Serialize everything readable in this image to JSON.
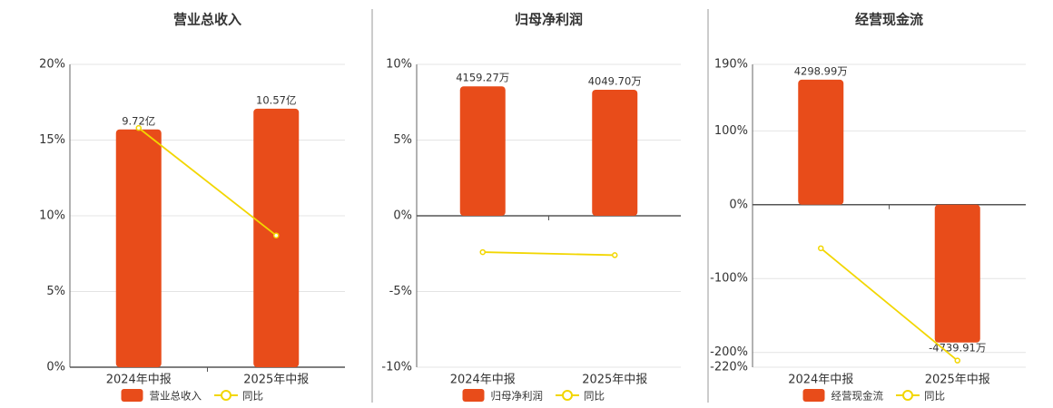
{
  "chart_data": [
    {
      "type": "bar",
      "title": "营业总收入",
      "categories": [
        "2024年中报",
        "2025年中报"
      ],
      "series": [
        {
          "name": "营业总收入",
          "color": "#e84c1a",
          "axis": "y2",
          "values": [
            9.72,
            10.57
          ],
          "value_labels": [
            "9.72亿",
            "10.57亿"
          ]
        },
        {
          "name": "同比",
          "color": "#f2d600",
          "type": "line",
          "values": [
            15.8,
            8.7
          ]
        }
      ],
      "ylim": [
        0,
        20
      ],
      "yticks": [
        {
          "value": 0,
          "label": "0%"
        },
        {
          "value": 5,
          "label": "5%"
        },
        {
          "value": 10,
          "label": "10%"
        },
        {
          "value": 15,
          "label": "15%"
        },
        {
          "value": 20,
          "label": "20%"
        }
      ],
      "y2lim": [
        0,
        12.38
      ],
      "grid": true
    },
    {
      "type": "bar",
      "title": "归母净利润",
      "categories": [
        "2024年中报",
        "2025年中报"
      ],
      "series": [
        {
          "name": "归母净利润",
          "color": "#e84c1a",
          "axis": "y2",
          "values": [
            4159.27,
            4049.7
          ],
          "value_labels": [
            "4159.27万",
            "4049.70万"
          ]
        },
        {
          "name": "同比",
          "color": "#f2d600",
          "type": "line",
          "values": [
            -2.4,
            -2.6
          ]
        }
      ],
      "ylim": [
        -10,
        10
      ],
      "yticks": [
        {
          "value": -10,
          "label": "-10%"
        },
        {
          "value": -5,
          "label": "-5%"
        },
        {
          "value": 0,
          "label": "0%"
        },
        {
          "value": 5,
          "label": "5%"
        },
        {
          "value": 10,
          "label": "10%"
        }
      ],
      "y2lim": [
        -4865,
        4865
      ],
      "grid": true
    },
    {
      "type": "bar",
      "title": "经营现金流",
      "categories": [
        "2024年中报",
        "2025年中报"
      ],
      "series": [
        {
          "name": "经营现金流",
          "color": "#e84c1a",
          "axis": "y2",
          "values": [
            4298.99,
            -4739.91
          ],
          "value_labels": [
            "4298.99万",
            "-4739.91万"
          ]
        },
        {
          "name": "同比",
          "color": "#f2d600",
          "type": "line",
          "values": [
            -59,
            -211
          ]
        }
      ],
      "ylim": [
        -220,
        190
      ],
      "yticks": [
        {
          "value": -220,
          "label": "-220%"
        },
        {
          "value": -200,
          "label": "-200%"
        },
        {
          "value": -100,
          "label": "-100%"
        },
        {
          "value": 0,
          "label": "0%"
        },
        {
          "value": 100,
          "label": "100%"
        },
        {
          "value": 190,
          "label": "190%"
        }
      ],
      "y2lim": [
        -5588,
        4826
      ],
      "grid": true
    }
  ]
}
